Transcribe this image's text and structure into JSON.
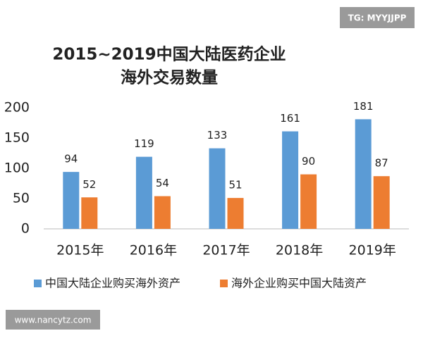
{
  "chart_data": {
    "type": "bar",
    "title": [
      "2015~2019中国大陆医药企业",
      "海外交易数量"
    ],
    "categories": [
      "2015年",
      "2016年",
      "2017年",
      "2018年",
      "2019年"
    ],
    "series": [
      {
        "name": "中国大陆企业购买海外资产",
        "color": "#5b9bd5",
        "values": [
          94,
          119,
          133,
          161,
          181
        ]
      },
      {
        "name": "海外企业购买中国大陆资产",
        "color": "#ed7d31",
        "values": [
          52,
          54,
          51,
          90,
          87
        ]
      }
    ],
    "ylim": [
      0,
      200
    ],
    "yticks": [
      0,
      50,
      100,
      150,
      200
    ],
    "grid": false,
    "legend": "bottom"
  },
  "badges": [
    "TG: MYYJJPP",
    "www.nancytz.com"
  ]
}
